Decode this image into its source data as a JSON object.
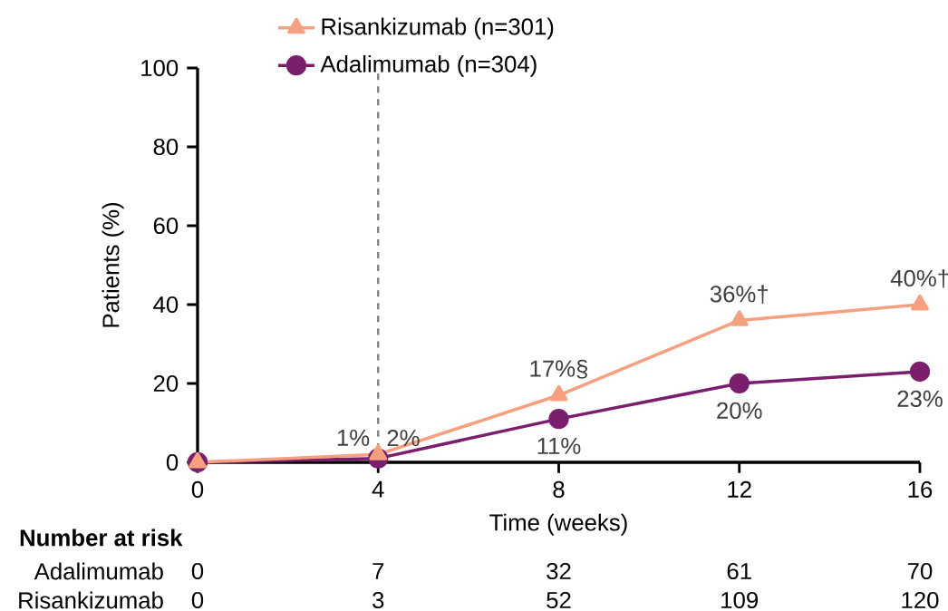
{
  "chart_data": {
    "type": "line",
    "xlabel": "Time (weeks)",
    "ylabel": "Patients (%)",
    "x": [
      0,
      4,
      8,
      12,
      16
    ],
    "xlim": [
      0,
      16
    ],
    "xticks": [
      0,
      4,
      8,
      12,
      16
    ],
    "ylim": [
      0,
      100
    ],
    "yticks": [
      0,
      20,
      40,
      60,
      80,
      100
    ],
    "legend": "top",
    "grid": false,
    "line_style": "solid",
    "series": [
      {
        "name": "Risankizumab (n=301)",
        "color": "#f7a07f",
        "marker": "triangle",
        "values": [
          0,
          2,
          17,
          36,
          40
        ],
        "value_labels": [
          null,
          "2%",
          "17%§",
          "36%†",
          "40%†"
        ]
      },
      {
        "name": "Adalimumab (n=304)",
        "color": "#7b1e6e",
        "marker": "circle",
        "values": [
          0,
          1,
          11,
          20,
          23
        ],
        "value_labels": [
          null,
          "1%",
          "11%",
          "20%",
          "23%"
        ]
      }
    ],
    "ref_lines": [
      {
        "axis": "x",
        "value": 4,
        "color": "#808080",
        "line_style": "dashed"
      }
    ],
    "annotations": [
      "Number at risk",
      "Adalimumab",
      "0",
      "7",
      "32",
      "61",
      "70",
      "Risankizumab",
      "0",
      "3",
      "52",
      "109",
      "120"
    ]
  }
}
